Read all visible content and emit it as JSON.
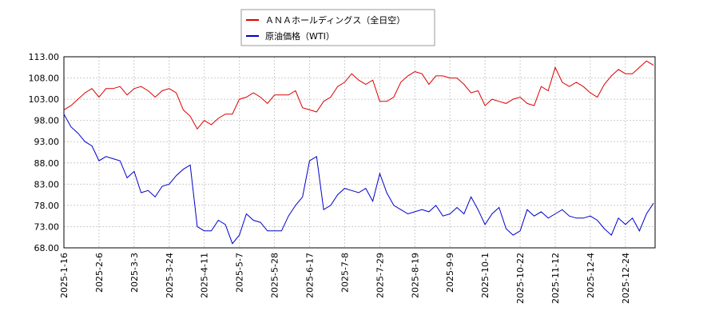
{
  "chart_data": {
    "type": "line",
    "categories": [
      "2025-1-16",
      null,
      null,
      null,
      null,
      "2025-2-6",
      null,
      null,
      null,
      null,
      "2025-3-3",
      null,
      null,
      null,
      null,
      "2025-3-24",
      null,
      null,
      null,
      null,
      "2025-4-11",
      null,
      null,
      null,
      null,
      "2025-5-7",
      null,
      null,
      null,
      null,
      "2025-5-28",
      null,
      null,
      null,
      null,
      "2025-6-17",
      null,
      null,
      null,
      null,
      "2025-7-8",
      null,
      null,
      null,
      null,
      "2025-7-29",
      null,
      null,
      null,
      null,
      "2025-8-19",
      null,
      null,
      null,
      null,
      "2025-9-9",
      null,
      null,
      null,
      null,
      "2025-10-1",
      null,
      null,
      null,
      null,
      "2025-10-22",
      null,
      null,
      null,
      null,
      "2025-11-12",
      null,
      null,
      null,
      null,
      "2025-12-4",
      null,
      null,
      null,
      null,
      "2025-12-24",
      null,
      null,
      null,
      null
    ],
    "series": [
      {
        "name": "ＡＮＡホールディングス（全日空）",
        "color": "#dd0000",
        "values": [
          100.5,
          101.5,
          103,
          104.5,
          105.5,
          103.5,
          105.5,
          105.5,
          106,
          104,
          105.5,
          106,
          105,
          103.5,
          105,
          105.5,
          104.5,
          100.5,
          99,
          96,
          98,
          97,
          98.5,
          99.5,
          99.5,
          103,
          103.5,
          104.5,
          103.5,
          102,
          104,
          104,
          104,
          105,
          101,
          100.5,
          100,
          102.5,
          103.5,
          106,
          107,
          109,
          107.5,
          106.5,
          107.5,
          102.5,
          102.5,
          103.5,
          107,
          108.5,
          109.5,
          109,
          106.5,
          108.5,
          108.5,
          108,
          108,
          106.5,
          104.5,
          105,
          101.5,
          103,
          102.5,
          102,
          103,
          103.5,
          102,
          101.5,
          106,
          105,
          110.5,
          107,
          106,
          107,
          106,
          104.5,
          103.5,
          106.5,
          108.5,
          110,
          109,
          109,
          110.5,
          112,
          111
        ]
      },
      {
        "name": "原油価格（WTI）",
        "color": "#0000cc",
        "values": [
          99.5,
          96.5,
          95,
          93,
          92,
          88.5,
          89.5,
          89,
          88.5,
          84.5,
          86,
          81,
          81.5,
          80,
          82.5,
          83,
          85,
          86.5,
          87.5,
          73,
          72,
          72,
          74.5,
          73.5,
          69,
          71,
          76,
          74.5,
          74,
          72,
          72,
          72,
          75.5,
          78,
          80,
          88.5,
          89.5,
          77,
          78,
          80.5,
          82,
          81.5,
          81,
          82,
          79,
          85.5,
          81,
          78,
          77,
          76,
          76.5,
          77,
          76.5,
          78,
          75.5,
          76,
          77.5,
          76,
          80,
          77,
          73.5,
          76,
          77.5,
          72.5,
          71,
          72,
          77,
          75.5,
          76.5,
          75,
          76,
          77,
          75.5,
          75,
          75,
          75.5,
          74.5,
          72.5,
          71,
          75,
          73.5,
          75,
          72,
          76,
          78.5
        ]
      }
    ],
    "ylim": [
      68,
      113
    ],
    "yticks": [
      {
        "value": 68,
        "label": "68.00"
      },
      {
        "value": 73,
        "label": "73.00"
      },
      {
        "value": 78,
        "label": "78.00"
      },
      {
        "value": 83,
        "label": "83.00"
      },
      {
        "value": 88,
        "label": "88.00"
      },
      {
        "value": 93,
        "label": "93.00"
      },
      {
        "value": 98,
        "label": "98.00"
      },
      {
        "value": 103,
        "label": "103.00"
      },
      {
        "value": 108,
        "label": "108.00"
      },
      {
        "value": 113,
        "label": "113.00"
      }
    ],
    "grid": true
  }
}
